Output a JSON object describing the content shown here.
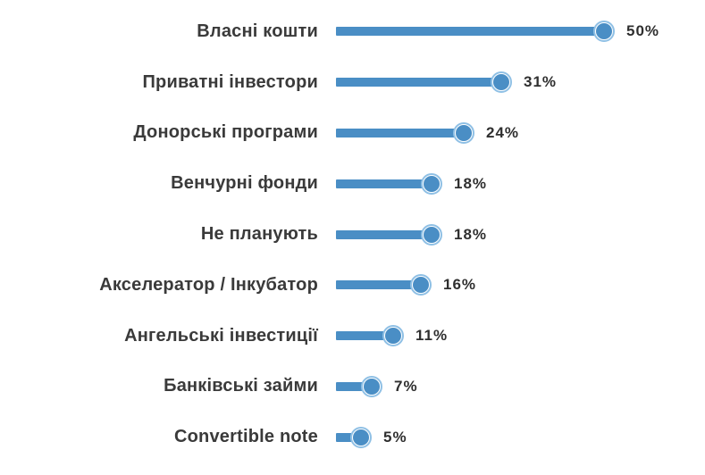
{
  "chart_data": {
    "type": "bar",
    "subtype": "lollipop",
    "orientation": "horizontal",
    "title": "",
    "xlabel": "",
    "ylabel": "",
    "grid": false,
    "legend": false,
    "xlim": [
      0,
      50
    ],
    "categories": [
      "Власні кошти",
      "Приватні інвестори",
      "Донорські програми",
      "Венчурні фонди",
      "Не планують",
      "Акселератор / Інкубатор",
      "Ангельські інвестиції",
      "Банківські займи",
      "Convertible note"
    ],
    "values": [
      50,
      31,
      24,
      18,
      18,
      16,
      11,
      7,
      5
    ],
    "value_labels": [
      "50%",
      "31%",
      "24%",
      "18%",
      "18%",
      "16%",
      "11%",
      "7%",
      "5%"
    ],
    "colors": {
      "bar": "#4a8ec5",
      "marker_fill": "#4a8ec5",
      "marker_ring": "#8fc0e5",
      "label_text": "#3a3a3a",
      "value_text": "#2f2f2f",
      "background": "#ffffff"
    }
  }
}
